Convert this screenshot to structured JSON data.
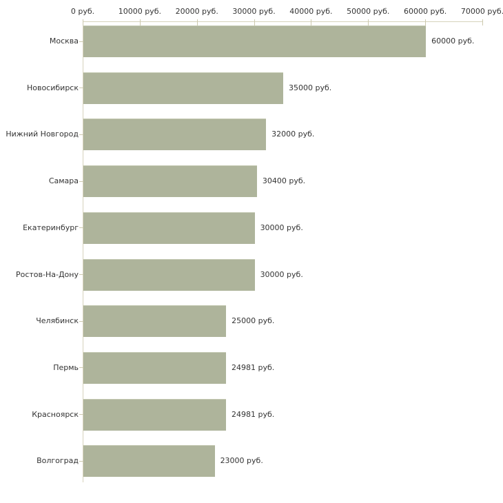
{
  "chart_data": {
    "type": "bar",
    "orientation": "horizontal",
    "title": "",
    "xlabel": "",
    "ylabel": "",
    "unit_suffix": " руб.",
    "categories": [
      "Москва",
      "Новосибирск",
      "Нижний Новгород",
      "Самара",
      "Екатеринбург",
      "Ростов-На-Дону",
      "Челябинск",
      "Пермь",
      "Красноярск",
      "Волгоград"
    ],
    "values": [
      60000,
      35000,
      32000,
      30400,
      30000,
      30000,
      25000,
      24981,
      24981,
      23000
    ],
    "value_labels": [
      "60000 руб.",
      "35000 руб.",
      "32000 руб.",
      "30400 руб.",
      "30000 руб.",
      "30000 руб.",
      "25000 руб.",
      "24981 руб.",
      "24981 руб.",
      "23000 руб."
    ],
    "xlim": [
      0,
      70000
    ],
    "x_tick_values": [
      0,
      10000,
      20000,
      30000,
      40000,
      50000,
      60000,
      70000
    ],
    "x_tick_labels": [
      "0 руб.",
      "10000 руб.",
      "20000 руб.",
      "30000 руб.",
      "40000 руб.",
      "50000 руб.",
      "60000 руб.",
      "70000 руб."
    ],
    "grid": false,
    "legend": "none",
    "axis_position": "top",
    "colors": {
      "bar_fill": "#aeb49b",
      "bar_top_edge": "#c3c8b1",
      "axis_line": "#d6d2bb",
      "tick_mark": "#cdc9ae",
      "text": "#333333",
      "background": "#ffffff"
    }
  }
}
